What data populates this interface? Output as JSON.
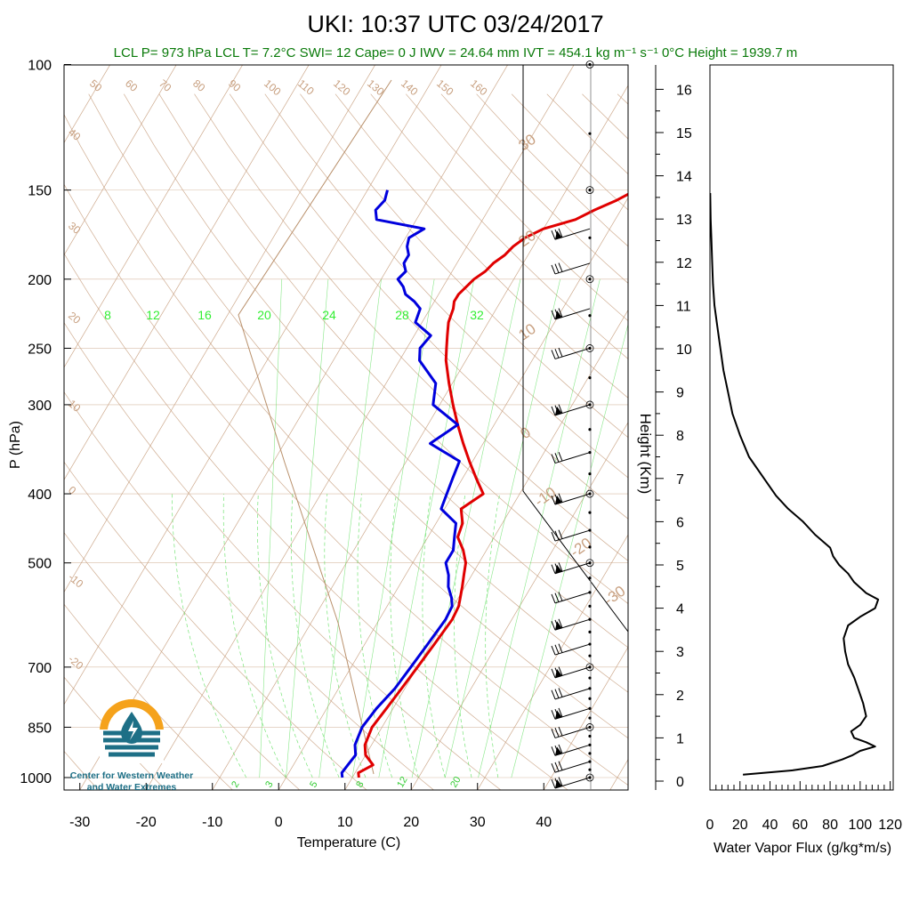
{
  "header": {
    "title": "UKI: 10:37 UTC 03/24/2017",
    "stats": "LCL P= 973 hPa  LCL T= 7.2°C  SWI= 12  Cape= 0 J  IWV = 24.64 mm  IVT = 454.1 kg m⁻¹ s⁻¹  0°C Height = 1939.7 m"
  },
  "logo": {
    "line1": "Center for Western Weather",
    "line2": "and Water Extremes"
  },
  "colors": {
    "temperature": "#e00000",
    "dewpoint": "#0000dd",
    "dry_adiabat": "#c8a080",
    "mixing_ratio": "#55dd55",
    "logo_orange": "#f5a21b",
    "logo_teal": "#1d6f86"
  },
  "chart_data": [
    {
      "type": "line",
      "name": "skew-t",
      "xlabel": "Temperature (C)",
      "ylabel": "P (hPa)",
      "x_ticks": [
        -30,
        -20,
        -10,
        0,
        10,
        20,
        30,
        40
      ],
      "y_ticks": [
        100,
        150,
        200,
        250,
        300,
        400,
        500,
        700,
        850,
        1000
      ],
      "y_scale": "log",
      "xlim": [
        -33,
        52
      ],
      "ylim": [
        1050,
        100
      ],
      "temp_iso_labels": [
        "50",
        "60",
        "70",
        "80",
        "90",
        "100",
        "110",
        "120",
        "130",
        "140",
        "150",
        "160"
      ],
      "theta_labels_left": [
        "40",
        "30",
        "20",
        "10",
        "0",
        "-10",
        "-20"
      ],
      "theta_labels_right": [
        "30",
        "20",
        "10",
        "0",
        "-10",
        "-20",
        "-30"
      ],
      "mixing_ratio_top": [
        "8",
        "12",
        "16",
        "20",
        "24",
        "28",
        "32"
      ],
      "mixing_ratio_bottom": [
        "2",
        "3",
        "5",
        "8",
        "12",
        "20"
      ],
      "series": [
        {
          "name": "temperature",
          "p": [
            1000,
            985,
            960,
            930,
            900,
            850,
            800,
            750,
            700,
            650,
            600,
            575,
            560,
            540,
            520,
            500,
            480,
            460,
            440,
            420,
            400,
            380,
            360,
            340,
            320,
            300,
            280,
            260,
            250,
            240,
            230,
            220,
            215,
            210,
            205,
            200,
            195,
            190,
            185,
            180,
            175,
            170,
            165,
            160,
            155,
            150
          ],
          "t": [
            11,
            10.5,
            12,
            10,
            9,
            8.5,
            9,
            9.5,
            10,
            10.5,
            11,
            10.8,
            10.3,
            9.6,
            8.8,
            8,
            6.5,
            4.5,
            4,
            2.5,
            4.5,
            2,
            -0.5,
            -3,
            -5.5,
            -8,
            -10.5,
            -13,
            -14,
            -15,
            -16,
            -16.5,
            -17,
            -17,
            -16.5,
            -16,
            -15,
            -14.5,
            -13.5,
            -13,
            -12,
            -10,
            -6,
            -4,
            -1.5,
            0.5
          ]
        },
        {
          "name": "dewpoint",
          "p": [
            1000,
            985,
            960,
            930,
            900,
            850,
            800,
            750,
            700,
            650,
            600,
            575,
            560,
            540,
            520,
            500,
            480,
            460,
            440,
            420,
            400,
            380,
            360,
            340,
            320,
            300,
            280,
            260,
            250,
            240,
            230,
            220,
            215,
            210,
            205,
            200,
            195,
            190,
            185,
            180,
            175,
            170,
            165,
            160,
            155,
            150
          ],
          "t": [
            8.5,
            8,
            8.2,
            8.5,
            7.5,
            7,
            7.5,
            8.5,
            9,
            9.5,
            10,
            9.8,
            9,
            7.5,
            6.5,
            5,
            5,
            4,
            3,
            -0.5,
            -1,
            -1.5,
            -2,
            -8,
            -5.5,
            -11,
            -12.5,
            -17,
            -18,
            -17.5,
            -21,
            -21.5,
            -23,
            -25,
            -26,
            -27.5,
            -27,
            -28,
            -28,
            -29,
            -29.5,
            -28,
            -36,
            -37,
            -36.5,
            -37
          ]
        }
      ],
      "wind_barb_levels_hpa": [
        1000,
        950,
        900,
        850,
        800,
        750,
        700,
        650,
        600,
        550,
        500,
        450,
        400,
        350,
        300,
        250,
        220,
        190,
        170
      ]
    },
    {
      "type": "line",
      "name": "water-vapor-flux",
      "xlabel": "Water Vapor Flux (g/kg*m/s)",
      "ylabel": "Height (Km)",
      "x_ticks": [
        0,
        20,
        40,
        60,
        80,
        100,
        120
      ],
      "y_ticks": [
        0,
        1,
        2,
        3,
        4,
        5,
        6,
        7,
        8,
        9,
        10,
        11,
        12,
        13,
        14,
        15,
        16
      ],
      "xlim": [
        0,
        122
      ],
      "ylim": [
        -0.3,
        16.4
      ],
      "series": [
        {
          "name": "flux",
          "height_km": [
            0.15,
            0.25,
            0.35,
            0.5,
            0.6,
            0.7,
            0.8,
            0.9,
            1.0,
            1.15,
            1.3,
            1.5,
            1.8,
            2.1,
            2.4,
            2.7,
            3.0,
            3.3,
            3.6,
            3.8,
            4.0,
            4.2,
            4.35,
            4.6,
            4.8,
            5.0,
            5.2,
            5.4,
            5.7,
            6.0,
            6.3,
            6.6,
            7.0,
            7.5,
            8.0,
            8.5,
            9.0,
            9.5,
            10,
            10.5,
            11,
            11.5,
            12,
            12.5,
            13,
            13.6
          ],
          "flux": [
            22,
            55,
            75,
            88,
            95,
            100,
            110,
            104,
            96,
            94,
            100,
            104,
            102,
            99,
            96,
            92,
            90,
            89,
            92,
            100,
            110,
            112,
            104,
            96,
            92,
            86,
            82,
            80,
            70,
            62,
            52,
            44,
            36,
            26,
            20,
            15,
            12,
            9,
            7,
            5,
            3,
            2,
            1.5,
            1,
            0.5,
            0.2
          ]
        }
      ]
    }
  ]
}
